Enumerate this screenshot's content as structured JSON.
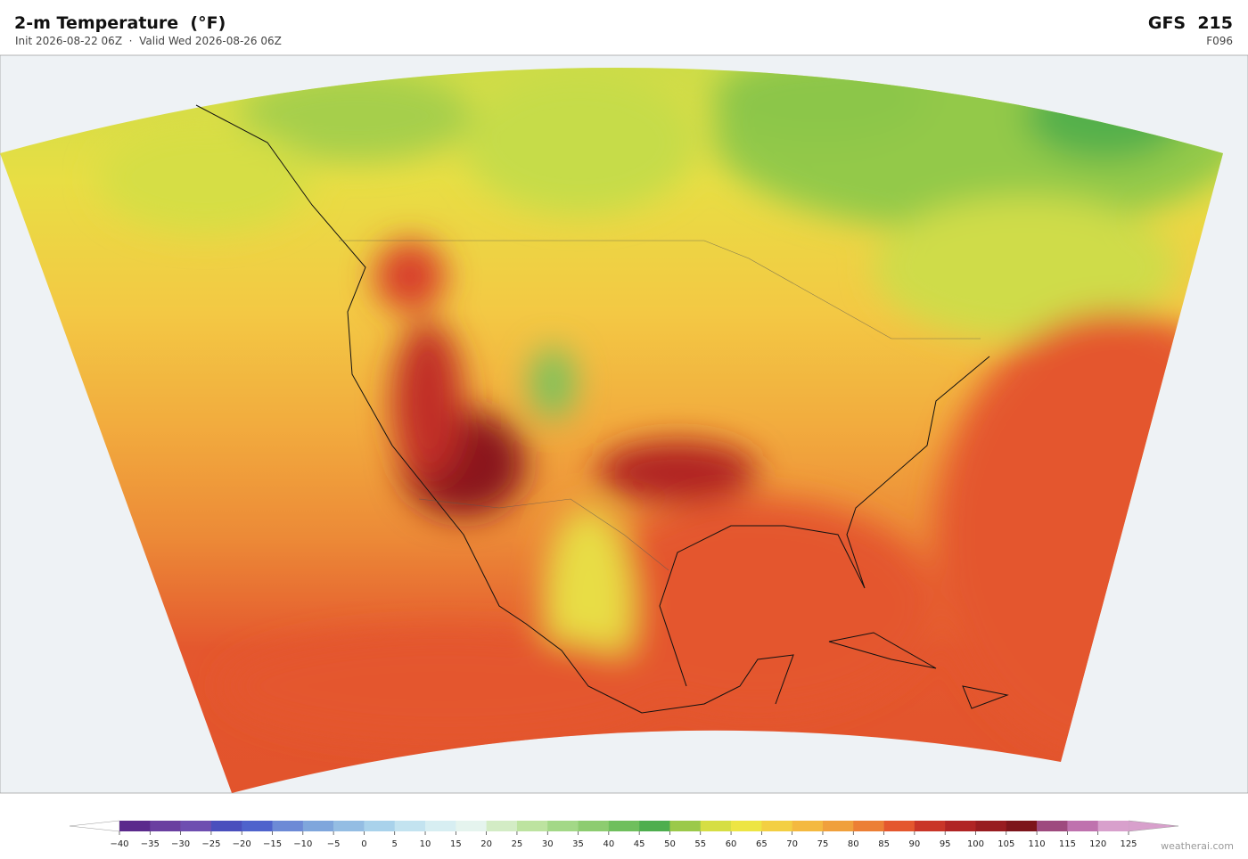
{
  "header": {
    "title": "2-m Temperature  (°F)",
    "subtitle": "Init 2026-08-22 06Z  ·  Valid Wed 2026-08-26 06Z",
    "model": "GFS  215",
    "forecast_hour": "F096"
  },
  "colorbar": {
    "ticks": [
      {
        "value": -40,
        "label": "−40"
      },
      {
        "value": -35,
        "label": "−35"
      },
      {
        "value": -30,
        "label": "−30"
      },
      {
        "value": -25,
        "label": "−25"
      },
      {
        "value": -20,
        "label": "−20"
      },
      {
        "value": -15,
        "label": "−15"
      },
      {
        "value": -10,
        "label": "−10"
      },
      {
        "value": -5,
        "label": "−5"
      },
      0,
      5,
      10,
      15,
      20,
      25,
      30,
      35,
      40,
      45,
      50,
      55,
      60,
      65,
      70,
      75,
      80,
      85,
      90,
      95,
      100,
      105,
      110,
      115,
      120,
      125
    ],
    "colors": [
      "#5b2a8c",
      "#6a3fa0",
      "#6e4eb0",
      "#4a4fbd",
      "#4f63cc",
      "#6d8ad6",
      "#7fa6dc",
      "#94bde3",
      "#a9d2eb",
      "#c3e3f0",
      "#d7eef2",
      "#e5f4ee",
      "#d3ecc5",
      "#bde3a0",
      "#a3d887",
      "#8dcc70",
      "#6fbf5d",
      "#4eae4e",
      "#9bc94a",
      "#d6de44",
      "#ede544",
      "#f3cf43",
      "#f4b940",
      "#f0a03c",
      "#ec7f35",
      "#e4572e",
      "#c93528",
      "#b02424",
      "#981c20",
      "#7d151b",
      "#9e4a7e",
      "#bf72ae",
      "#d8a0cc"
    ]
  },
  "footer": {
    "watermark": "weatherai.com"
  }
}
